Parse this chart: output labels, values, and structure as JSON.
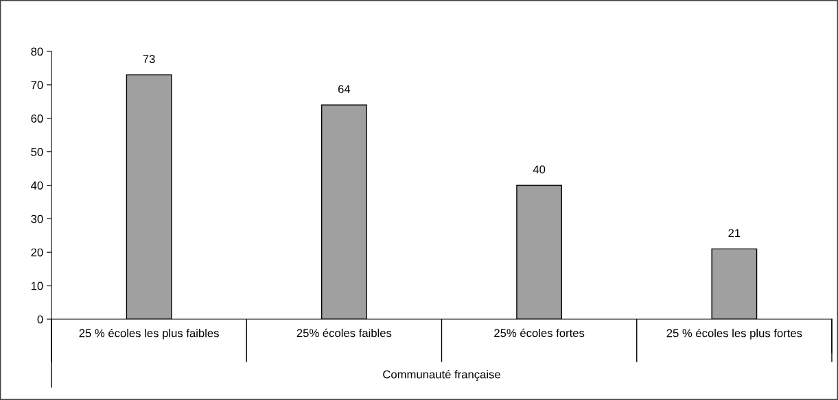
{
  "chart_data": {
    "type": "bar",
    "categories": [
      "25 % écoles les plus faibles",
      "25% écoles faibles",
      "25% écoles fortes",
      "25 % écoles les plus fortes"
    ],
    "values": [
      73,
      64,
      40,
      21
    ],
    "color": "#a0a0a0",
    "xlabel": "Communauté française",
    "ylim": [
      0,
      80
    ],
    "yticks": [
      0,
      10,
      20,
      30,
      40,
      50,
      60,
      70,
      80
    ],
    "data_labels": true,
    "grid": false,
    "legend": false
  }
}
